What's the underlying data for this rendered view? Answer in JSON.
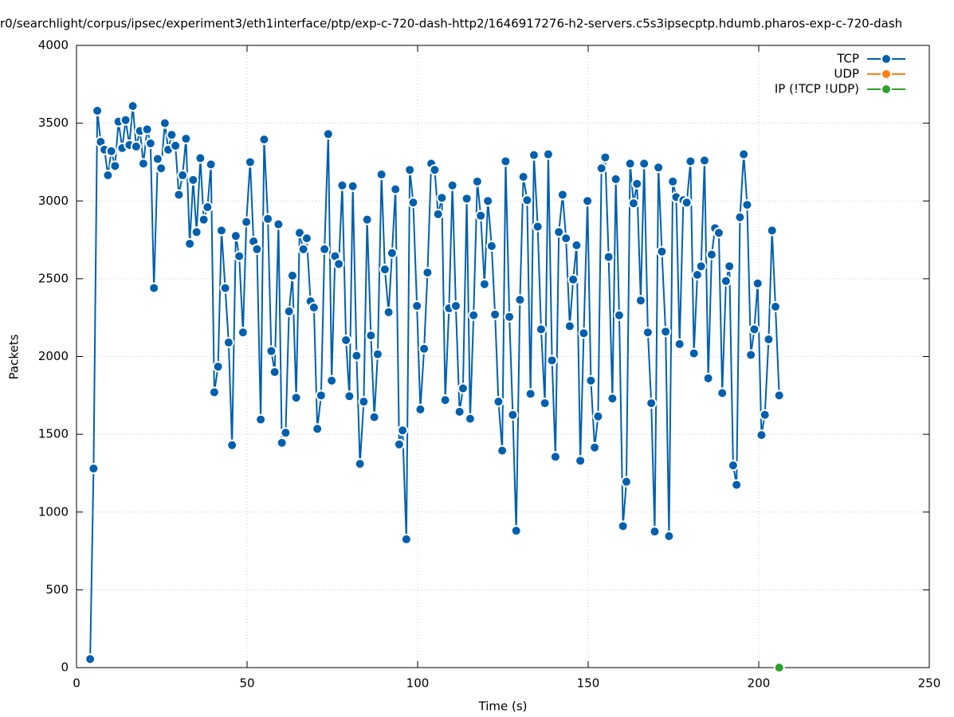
{
  "chart_data": {
    "type": "line",
    "title": "r0/searchlight/corpus/ipsec/experiment3/eth1interface/ptp/exp-c-720-dash-http2/1646917276-h2-servers.c5s3ipsecptp.hdumb.pharos-exp-c-720-dash",
    "x_label": "Time (s)",
    "y_label": "Packets",
    "xlim": [
      0,
      250
    ],
    "xticks": [
      0,
      50,
      100,
      150,
      200,
      250
    ],
    "ylim": [
      0,
      4000
    ],
    "yticks": [
      0,
      500,
      1000,
      1500,
      2000,
      2500,
      3000,
      3500,
      4000
    ],
    "grid": true,
    "legend": "top-right",
    "series": [
      {
        "name": "TCP",
        "color": "#0060ad",
        "x": [
          4.0,
          5.0,
          6.1,
          7.1,
          8.2,
          9.2,
          10.2,
          11.3,
          12.3,
          13.4,
          14.4,
          15.5,
          16.5,
          17.5,
          18.6,
          19.6,
          20.7,
          21.7,
          22.7,
          23.8,
          24.8,
          25.9,
          26.9,
          27.9,
          29.0,
          30.0,
          31.1,
          32.1,
          33.2,
          34.2,
          35.2,
          36.3,
          37.3,
          38.4,
          39.4,
          40.4,
          41.5,
          42.5,
          43.6,
          44.6,
          45.6,
          46.7,
          47.7,
          48.8,
          49.8,
          50.9,
          51.9,
          52.9,
          54.0,
          55.0,
          56.1,
          57.1,
          58.1,
          59.2,
          60.2,
          61.3,
          62.3,
          63.3,
          64.4,
          65.4,
          66.5,
          67.5,
          68.6,
          69.6,
          70.6,
          71.7,
          72.7,
          73.8,
          74.8,
          75.8,
          76.9,
          77.9,
          79.0,
          80.0,
          81.0,
          82.1,
          83.1,
          84.2,
          85.2,
          86.3,
          87.3,
          88.3,
          89.4,
          90.4,
          91.5,
          92.5,
          93.5,
          94.6,
          95.6,
          96.7,
          97.7,
          98.7,
          99.8,
          100.8,
          101.9,
          102.9,
          104.0,
          105.0,
          106.0,
          107.1,
          108.1,
          109.2,
          110.2,
          111.2,
          112.3,
          113.3,
          114.4,
          115.4,
          116.4,
          117.5,
          118.5,
          119.6,
          120.6,
          121.7,
          122.7,
          123.7,
          124.8,
          125.8,
          126.9,
          127.9,
          128.9,
          130.0,
          131.0,
          132.1,
          133.1,
          134.1,
          135.2,
          136.2,
          137.3,
          138.3,
          139.4,
          140.4,
          141.4,
          142.5,
          143.5,
          144.6,
          145.6,
          146.6,
          147.7,
          148.7,
          149.8,
          150.8,
          151.9,
          152.9,
          153.9,
          155.0,
          156.0,
          157.1,
          158.1,
          159.1,
          160.2,
          161.2,
          162.3,
          163.3,
          164.3,
          165.4,
          166.4,
          167.5,
          168.5,
          169.5,
          170.6,
          171.6,
          172.7,
          173.7,
          174.8,
          175.8,
          176.8,
          177.9,
          178.9,
          180.0,
          181.0,
          182.0,
          183.1,
          184.1,
          185.2,
          186.2,
          187.2,
          188.3,
          189.3,
          190.4,
          191.4,
          192.5,
          193.5,
          194.5,
          195.6,
          196.6,
          197.7,
          198.7,
          199.7,
          200.8,
          201.8,
          202.9,
          203.9,
          204.9,
          206.0
        ],
        "values": [
          55,
          1280,
          3580,
          3380,
          3330,
          3165,
          3320,
          3225,
          3510,
          3340,
          3520,
          3360,
          3610,
          3350,
          3450,
          3240,
          3460,
          3370,
          2440,
          3270,
          3210,
          3500,
          3330,
          3425,
          3355,
          3040,
          3165,
          3400,
          2725,
          3135,
          2800,
          3275,
          2880,
          2960,
          3235,
          1770,
          1935,
          2810,
          2440,
          2090,
          1430,
          2775,
          2645,
          2155,
          2865,
          3250,
          2740,
          2690,
          1595,
          3395,
          2885,
          2035,
          1900,
          2850,
          1445,
          1510,
          2290,
          2520,
          1735,
          2795,
          2690,
          2760,
          2355,
          2315,
          1535,
          1750,
          2690,
          3430,
          1845,
          2645,
          2595,
          3100,
          2105,
          1745,
          3095,
          2005,
          1310,
          1710,
          2880,
          2135,
          1610,
          2015,
          3170,
          2560,
          2285,
          2665,
          3075,
          1435,
          1525,
          825,
          3200,
          2990,
          2325,
          1660,
          2050,
          2540,
          3240,
          3200,
          2915,
          3020,
          1720,
          2310,
          3100,
          2325,
          1645,
          1795,
          3015,
          1600,
          2265,
          3125,
          2905,
          2465,
          3000,
          2710,
          2270,
          1710,
          1395,
          3255,
          2255,
          1625,
          880,
          2365,
          3155,
          3005,
          1760,
          3295,
          2835,
          2175,
          1700,
          3300,
          1975,
          1355,
          2800,
          3040,
          2760,
          2195,
          2495,
          2715,
          1330,
          2150,
          3000,
          1845,
          1415,
          1615,
          3210,
          3280,
          2640,
          1730,
          3140,
          2265,
          910,
          1195,
          3240,
          2985,
          3110,
          2360,
          3240,
          2155,
          1700,
          875,
          3215,
          2675,
          2160,
          845,
          3125,
          3025,
          2080,
          3005,
          2990,
          3255,
          2020,
          2525,
          2580,
          3260,
          1860,
          2655,
          2825,
          2795,
          1765,
          2485,
          2580,
          1300,
          1175,
          2895,
          3300,
          2975,
          2010,
          2175,
          2470,
          1495,
          1625,
          2110,
          2810,
          2320,
          1750
        ]
      },
      {
        "name": "UDP",
        "color": "#ff7f0e",
        "x": [],
        "values": []
      },
      {
        "name": "IP (!TCP  !UDP)",
        "color": "#2ca02c",
        "x": [
          206
        ],
        "values": [
          0
        ]
      }
    ]
  }
}
